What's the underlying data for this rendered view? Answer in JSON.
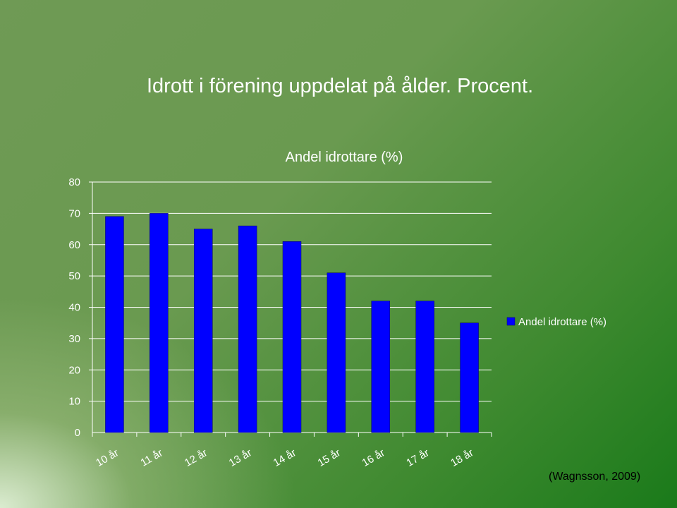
{
  "slide": {
    "title": "Idrott i förening uppdelat på ålder. Procent.",
    "source": "(Wagnsson, 2009)"
  },
  "colors": {
    "bar": "#0000ff",
    "bar_stroke": "#000066",
    "grid": "#ffffff"
  },
  "chart_data": {
    "type": "bar",
    "title": "Andel idrottare (%)",
    "categories": [
      "10 år",
      "11 år",
      "12 år",
      "13 år",
      "14 år",
      "15 år",
      "16 år",
      "17 år",
      "18 år"
    ],
    "series": [
      {
        "name": "Andel idrottare (%)",
        "values": [
          69,
          70,
          65,
          66,
          61,
          51,
          42,
          42,
          35
        ]
      }
    ],
    "ylim": [
      0,
      80
    ],
    "yticks": [
      0,
      10,
      20,
      30,
      40,
      50,
      60,
      70,
      80
    ],
    "grid": true,
    "legend_position": "right"
  }
}
